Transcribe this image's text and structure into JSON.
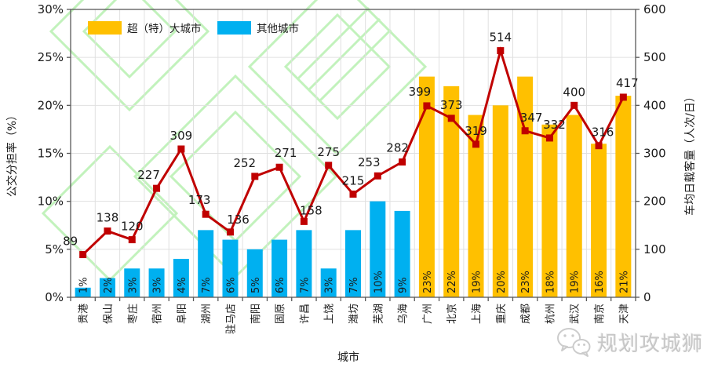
{
  "chart_data": {
    "type": "bar+line",
    "title": "",
    "xlabel": "城市",
    "ylabel_left": "公交分担率（%）",
    "ylabel_right": "车均日载客量（人次/日）",
    "legend": [
      {
        "label": "超（特）大城市",
        "color": "#FFC000",
        "series": "bar-mega"
      },
      {
        "label": "其他城市",
        "color": "#00B0F0",
        "series": "bar-other"
      }
    ],
    "categories": [
      "贵港",
      "保山",
      "枣庄",
      "宿州",
      "阜阳",
      "湖州",
      "驻马店",
      "南阳",
      "固原",
      "许昌",
      "上饶",
      "潍坊",
      "芜湖",
      "乌海",
      "广州",
      "北京",
      "上海",
      "重庆",
      "成都",
      "杭州",
      "武汉",
      "南京",
      "天津"
    ],
    "bar_series": {
      "name": "公交分担率",
      "unit": "%",
      "axis": "left",
      "values": [
        1,
        2,
        3,
        3,
        4,
        7,
        6,
        5,
        6,
        7,
        3,
        7,
        10,
        9,
        23,
        22,
        19,
        20,
        23,
        18,
        19,
        16,
        21
      ],
      "labels": [
        "1%",
        "2%",
        "3%",
        "3%",
        "4%",
        "7%",
        "6%",
        "5%",
        "6%",
        "7%",
        "3%",
        "7%",
        "10%",
        "9%",
        "23%",
        "22%",
        "19%",
        "20%",
        "23%",
        "18%",
        "19%",
        "16%",
        "21%"
      ],
      "group": [
        "other",
        "other",
        "other",
        "other",
        "other",
        "other",
        "other",
        "other",
        "other",
        "other",
        "other",
        "other",
        "other",
        "other",
        "mega",
        "mega",
        "mega",
        "mega",
        "mega",
        "mega",
        "mega",
        "mega",
        "mega"
      ]
    },
    "line_series": {
      "name": "车均日载客量",
      "unit": "人次/日",
      "axis": "right",
      "color": "#C00000",
      "values": [
        89,
        138,
        120,
        227,
        309,
        173,
        136,
        252,
        271,
        158,
        275,
        215,
        253,
        282,
        399,
        373,
        319,
        514,
        347,
        332,
        400,
        316,
        417
      ]
    },
    "left_axis": {
      "min": 0,
      "max": 30,
      "step": 5,
      "tick_labels": [
        "0%",
        "5%",
        "10%",
        "15%",
        "20%",
        "25%",
        "30%"
      ]
    },
    "right_axis": {
      "min": 0,
      "max": 600,
      "step": 100,
      "tick_labels": [
        "0",
        "100",
        "200",
        "300",
        "400",
        "500",
        "600"
      ]
    },
    "grid": "on",
    "legend_position": "top-left-inside"
  },
  "watermark": {
    "text": "规划攻城狮",
    "icon": "wechat-icon"
  },
  "colors": {
    "bar_mega": "#FFC000",
    "bar_other": "#00B0F0",
    "line": "#C00000",
    "grid": "#E0E0E0",
    "axis": "#595959",
    "watermark_green": "#C2F2BC",
    "watermark_gray": "#C9C9C9"
  }
}
